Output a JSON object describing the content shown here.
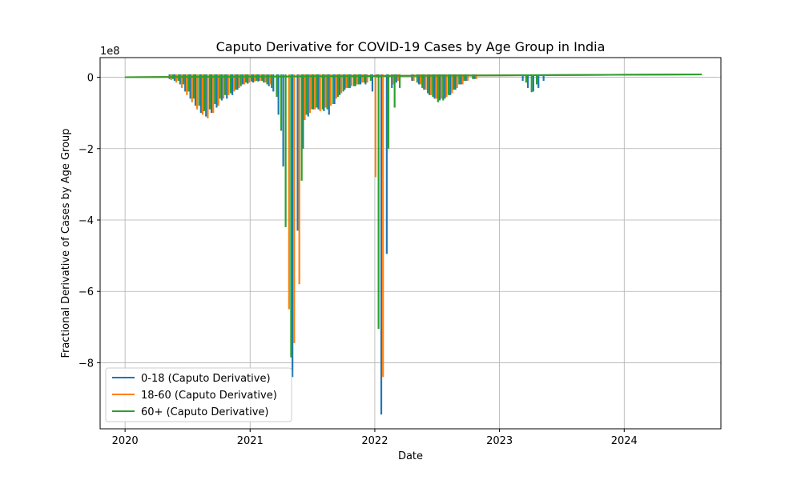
{
  "chart_data": {
    "type": "line",
    "title": "Caputo Derivative for COVID-19 Cases by Age Group in India",
    "xlabel": "Date",
    "ylabel": "Fractional Derivative of Cases by Age Group",
    "y_offset_text": "1e8",
    "xlim": [
      "2019-10-20",
      "2024-10-10"
    ],
    "ylim": [
      -9.85,
      0.55
    ],
    "y_ticks": [
      0,
      -2,
      -4,
      -6,
      -8
    ],
    "y_tick_labels": [
      "0",
      "−2",
      "−4",
      "−6",
      "−8"
    ],
    "x_ticks": [
      "2020-01-01",
      "2021-01-01",
      "2022-01-01",
      "2023-01-01",
      "2024-01-01"
    ],
    "x_tick_labels": [
      "2020",
      "2021",
      "2022",
      "2023",
      "2024"
    ],
    "grid": true,
    "legend_position": "lower-left",
    "series": [
      {
        "name": "0-18 (Caputo Derivative)",
        "color": "#1f77b4",
        "baseline": 0.08,
        "spikes": [
          [
            "2020-05-10",
            -0.05
          ],
          [
            "2020-05-25",
            -0.1
          ],
          [
            "2020-06-10",
            -0.2
          ],
          [
            "2020-06-25",
            -0.4
          ],
          [
            "2020-07-10",
            -0.6
          ],
          [
            "2020-07-25",
            -0.8
          ],
          [
            "2020-08-10",
            -1.0
          ],
          [
            "2020-08-25",
            -1.1
          ],
          [
            "2020-09-10",
            -1.0
          ],
          [
            "2020-09-25",
            -0.85
          ],
          [
            "2020-10-10",
            -0.65
          ],
          [
            "2020-10-25",
            -0.6
          ],
          [
            "2020-11-10",
            -0.5
          ],
          [
            "2020-11-25",
            -0.35
          ],
          [
            "2020-12-10",
            -0.2
          ],
          [
            "2020-12-25",
            -0.18
          ],
          [
            "2021-01-10",
            -0.15
          ],
          [
            "2021-01-25",
            -0.12
          ],
          [
            "2021-02-10",
            -0.15
          ],
          [
            "2021-02-25",
            -0.25
          ],
          [
            "2021-03-10",
            -0.4
          ],
          [
            "2021-03-25",
            -1.05
          ],
          [
            "2021-04-08",
            -2.5
          ],
          [
            "2021-05-05",
            -8.4
          ],
          [
            "2021-05-20",
            -4.3
          ],
          [
            "2021-06-05",
            -2.0
          ],
          [
            "2021-06-20",
            -1.1
          ],
          [
            "2021-07-05",
            -0.9
          ],
          [
            "2021-07-20",
            -0.9
          ],
          [
            "2021-08-05",
            -0.95
          ],
          [
            "2021-08-20",
            -1.05
          ],
          [
            "2021-09-05",
            -0.75
          ],
          [
            "2021-09-20",
            -0.5
          ],
          [
            "2021-10-05",
            -0.35
          ],
          [
            "2021-10-20",
            -0.3
          ],
          [
            "2021-11-05",
            -0.25
          ],
          [
            "2021-11-20",
            -0.2
          ],
          [
            "2021-12-05",
            -0.2
          ],
          [
            "2021-12-25",
            -0.4
          ],
          [
            "2022-01-07",
            -0.0
          ],
          [
            "2022-01-20",
            -9.45
          ],
          [
            "2022-02-05",
            -4.95
          ],
          [
            "2022-02-20",
            -0.3
          ],
          [
            "2022-03-05",
            -0.15
          ],
          [
            "2022-04-20",
            -0.1
          ],
          [
            "2022-05-10",
            -0.2
          ],
          [
            "2022-05-25",
            -0.35
          ],
          [
            "2022-06-10",
            -0.5
          ],
          [
            "2022-06-25",
            -0.6
          ],
          [
            "2022-07-10",
            -0.65
          ],
          [
            "2022-07-25",
            -0.6
          ],
          [
            "2022-08-10",
            -0.5
          ],
          [
            "2022-08-25",
            -0.35
          ],
          [
            "2022-09-10",
            -0.2
          ],
          [
            "2022-09-25",
            -0.1
          ],
          [
            "2022-10-20",
            -0.05
          ],
          [
            "2023-03-10",
            -0.1
          ],
          [
            "2023-03-25",
            -0.3
          ],
          [
            "2023-04-10",
            -0.4
          ],
          [
            "2023-04-25",
            -0.3
          ],
          [
            "2023-05-10",
            -0.1
          ]
        ]
      },
      {
        "name": "18-60 (Caputo Derivative)",
        "color": "#ff7f0e",
        "baseline": 0.08,
        "spikes": [
          [
            "2020-05-15",
            -0.08
          ],
          [
            "2020-05-30",
            -0.15
          ],
          [
            "2020-06-15",
            -0.3
          ],
          [
            "2020-06-30",
            -0.5
          ],
          [
            "2020-07-15",
            -0.7
          ],
          [
            "2020-07-30",
            -0.9
          ],
          [
            "2020-08-15",
            -1.05
          ],
          [
            "2020-08-30",
            -1.15
          ],
          [
            "2020-09-15",
            -1.0
          ],
          [
            "2020-09-30",
            -0.8
          ],
          [
            "2020-10-15",
            -0.6
          ],
          [
            "2020-10-30",
            -0.5
          ],
          [
            "2020-11-15",
            -0.4
          ],
          [
            "2020-11-30",
            -0.3
          ],
          [
            "2020-12-15",
            -0.2
          ],
          [
            "2020-12-30",
            -0.15
          ],
          [
            "2021-01-15",
            -0.12
          ],
          [
            "2021-01-30",
            -0.1
          ],
          [
            "2021-02-15",
            -0.15
          ],
          [
            "2021-02-28",
            -0.2
          ],
          [
            "2021-04-25",
            -6.5
          ],
          [
            "2021-05-10",
            -7.45
          ],
          [
            "2021-05-25",
            -5.8
          ],
          [
            "2021-06-10",
            -1.2
          ],
          [
            "2021-06-25",
            -1.0
          ],
          [
            "2021-07-10",
            -0.9
          ],
          [
            "2021-07-25",
            -0.95
          ],
          [
            "2021-08-10",
            -0.85
          ],
          [
            "2021-08-25",
            -0.8
          ],
          [
            "2021-09-10",
            -0.6
          ],
          [
            "2021-09-25",
            -0.45
          ],
          [
            "2021-10-10",
            -0.3
          ],
          [
            "2021-10-25",
            -0.25
          ],
          [
            "2021-11-10",
            -0.2
          ],
          [
            "2021-11-25",
            -0.15
          ],
          [
            "2021-12-10",
            -0.15
          ],
          [
            "2022-01-03",
            -2.8
          ],
          [
            "2022-01-25",
            -8.4
          ],
          [
            "2022-02-25",
            -0.2
          ],
          [
            "2022-03-10",
            -0.1
          ],
          [
            "2022-04-25",
            -0.1
          ],
          [
            "2022-05-15",
            -0.2
          ],
          [
            "2022-05-30",
            -0.35
          ],
          [
            "2022-06-15",
            -0.5
          ],
          [
            "2022-06-30",
            -0.6
          ],
          [
            "2022-07-15",
            -0.6
          ],
          [
            "2022-07-30",
            -0.55
          ],
          [
            "2022-08-15",
            -0.45
          ],
          [
            "2022-08-30",
            -0.3
          ],
          [
            "2022-09-15",
            -0.2
          ],
          [
            "2022-09-30",
            -0.1
          ],
          [
            "2022-10-25",
            -0.05
          ]
        ]
      },
      {
        "name": "60+ (Caputo Derivative)",
        "color": "#2ca02c",
        "baseline": 0.08,
        "spikes": [
          [
            "2020-05-20",
            -0.05
          ],
          [
            "2020-06-05",
            -0.1
          ],
          [
            "2020-06-20",
            -0.2
          ],
          [
            "2020-07-05",
            -0.4
          ],
          [
            "2020-07-20",
            -0.6
          ],
          [
            "2020-08-05",
            -0.8
          ],
          [
            "2020-08-20",
            -0.95
          ],
          [
            "2020-09-05",
            -0.9
          ],
          [
            "2020-09-20",
            -0.75
          ],
          [
            "2020-10-05",
            -0.6
          ],
          [
            "2020-10-20",
            -0.5
          ],
          [
            "2020-11-05",
            -0.45
          ],
          [
            "2020-11-20",
            -0.35
          ],
          [
            "2020-12-05",
            -0.25
          ],
          [
            "2020-12-20",
            -0.15
          ],
          [
            "2021-01-05",
            -0.12
          ],
          [
            "2021-01-20",
            -0.1
          ],
          [
            "2021-02-05",
            -0.1
          ],
          [
            "2021-02-20",
            -0.2
          ],
          [
            "2021-03-05",
            -0.3
          ],
          [
            "2021-03-20",
            -0.55
          ],
          [
            "2021-04-02",
            -1.5
          ],
          [
            "2021-04-15",
            -4.2
          ],
          [
            "2021-05-01",
            -7.85
          ],
          [
            "2021-06-01",
            -2.9
          ],
          [
            "2021-06-15",
            -1.05
          ],
          [
            "2021-07-01",
            -0.9
          ],
          [
            "2021-07-15",
            -0.85
          ],
          [
            "2021-08-01",
            -0.9
          ],
          [
            "2021-08-15",
            -0.9
          ],
          [
            "2021-09-01",
            -0.75
          ],
          [
            "2021-09-15",
            -0.55
          ],
          [
            "2021-10-01",
            -0.4
          ],
          [
            "2021-10-15",
            -0.3
          ],
          [
            "2021-11-01",
            -0.25
          ],
          [
            "2021-11-15",
            -0.2
          ],
          [
            "2021-12-01",
            -0.15
          ],
          [
            "2021-12-20",
            -0.1
          ],
          [
            "2022-01-12",
            -7.05
          ],
          [
            "2022-02-10",
            -2.0
          ],
          [
            "2022-02-28",
            -0.85
          ],
          [
            "2022-03-15",
            -0.3
          ],
          [
            "2022-05-05",
            -0.15
          ],
          [
            "2022-05-20",
            -0.3
          ],
          [
            "2022-06-05",
            -0.45
          ],
          [
            "2022-06-20",
            -0.55
          ],
          [
            "2022-07-05",
            -0.7
          ],
          [
            "2022-07-20",
            -0.65
          ],
          [
            "2022-08-05",
            -0.5
          ],
          [
            "2022-08-20",
            -0.35
          ],
          [
            "2022-09-05",
            -0.2
          ],
          [
            "2022-09-20",
            -0.1
          ],
          [
            "2022-10-15",
            -0.05
          ],
          [
            "2023-03-20",
            -0.15
          ],
          [
            "2023-04-05",
            -0.42
          ],
          [
            "2023-04-20",
            -0.2
          ]
        ]
      }
    ]
  }
}
